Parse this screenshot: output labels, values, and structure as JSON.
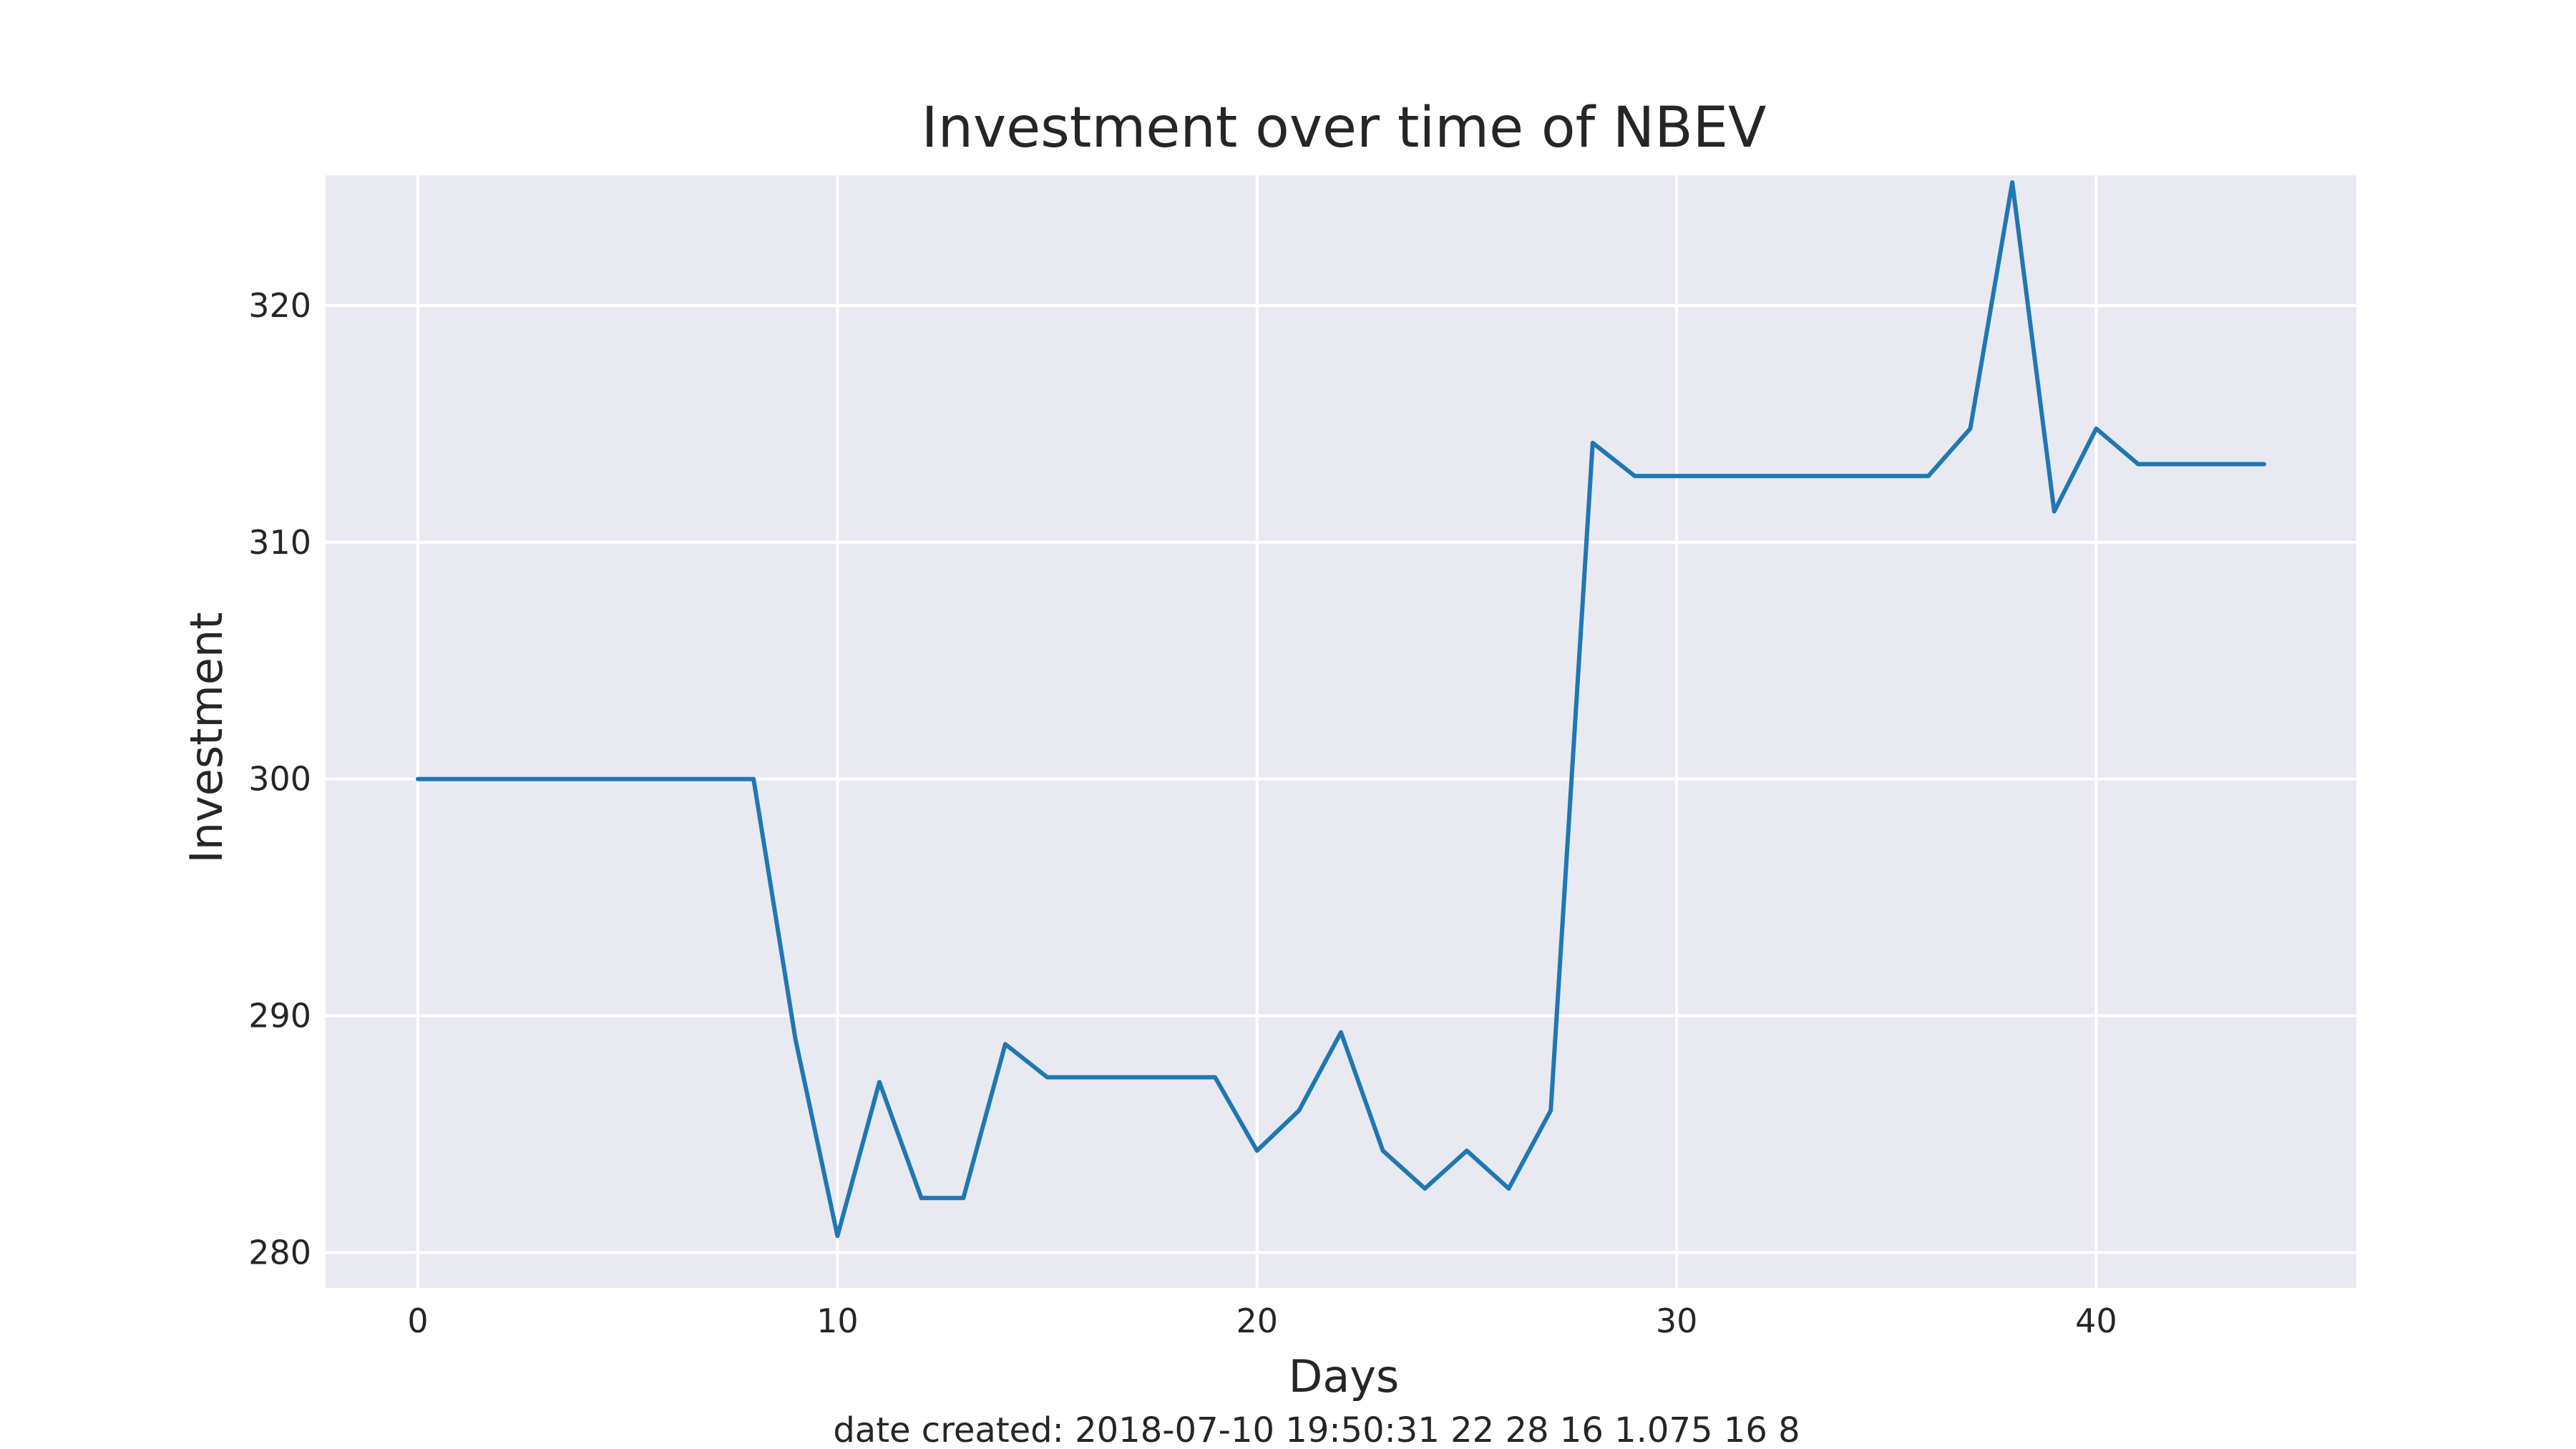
{
  "chart_data": {
    "type": "line",
    "title": "Investment over time of NBEV",
    "xlabel": "Days",
    "ylabel": "Investment",
    "caption": "date created: 2018-07-10 19:50:31 22 28 16 1.075 16 8",
    "xlim": [
      -2.2,
      46.2
    ],
    "ylim": [
      278.5,
      325.5
    ],
    "xticks": [
      0,
      10,
      20,
      30,
      40
    ],
    "yticks": [
      280,
      290,
      300,
      310,
      320
    ],
    "grid": true,
    "background_color": "#e9e9f1",
    "grid_color": "#ffffff",
    "line_color": "#1f77b4",
    "series": [
      {
        "x": [
          0,
          1,
          2,
          3,
          4,
          5,
          6,
          7,
          8,
          9,
          10,
          11,
          12,
          13,
          14,
          15,
          16,
          17,
          18,
          19,
          20,
          21,
          22,
          23,
          24,
          25,
          26,
          27,
          28,
          29,
          30,
          31,
          32,
          33,
          34,
          35,
          36,
          37,
          38,
          39,
          40,
          41,
          42,
          43,
          44
        ],
        "values": [
          300,
          300,
          300,
          300,
          300,
          300,
          300,
          300,
          300,
          289,
          280.7,
          287.2,
          282.3,
          282.3,
          288.8,
          287.4,
          287.4,
          287.4,
          287.4,
          287.4,
          284.3,
          286,
          289.3,
          284.3,
          282.7,
          284.3,
          282.7,
          286,
          314.2,
          312.8,
          312.8,
          312.8,
          312.8,
          312.8,
          312.8,
          312.8,
          312.8,
          314.8,
          325.2,
          311.3,
          314.8,
          313.3,
          313.3,
          313.3,
          313.3
        ]
      }
    ]
  }
}
